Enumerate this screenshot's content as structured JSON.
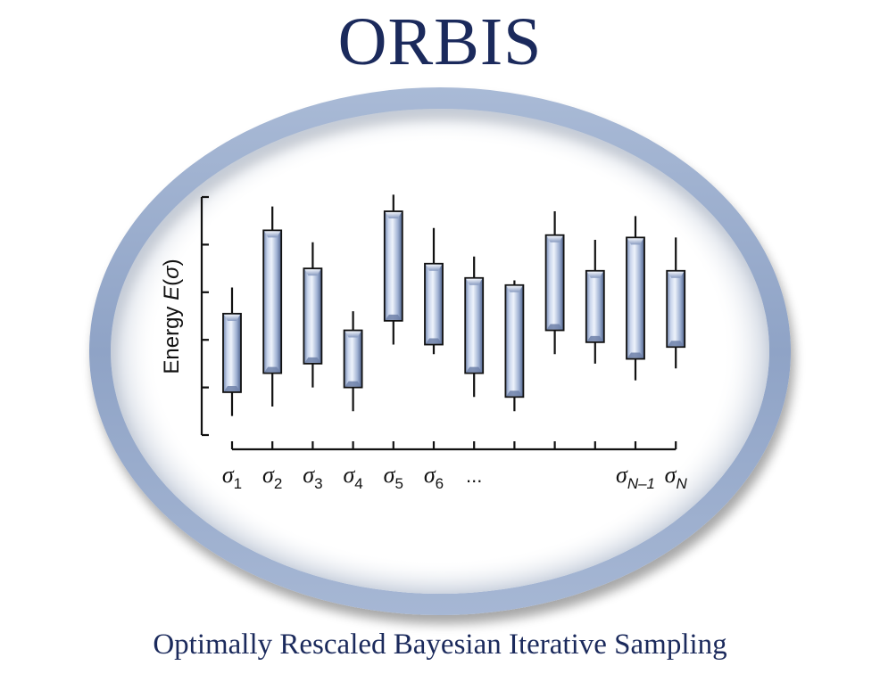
{
  "title": "ORBIS",
  "subtitle": "Optimally Rescaled Bayesian Iterative Sampling",
  "y_axis": {
    "prefix": "Energy ",
    "func": "E",
    "open": "(",
    "var": "σ",
    "close": ")"
  },
  "x_tick_labels": [
    {
      "base": "σ",
      "sub": "1"
    },
    {
      "base": "σ",
      "sub": "2"
    },
    {
      "base": "σ",
      "sub": "3"
    },
    {
      "base": "σ",
      "sub": "4"
    },
    {
      "base": "σ",
      "sub": "5"
    },
    {
      "base": "σ",
      "sub": "6"
    },
    {
      "base": "...",
      "sub": ""
    },
    {
      "base": "",
      "sub": ""
    },
    {
      "base": "",
      "sub": ""
    },
    {
      "base": "",
      "sub": ""
    },
    {
      "base": "σ",
      "sub": "N–1"
    },
    {
      "base": "σ",
      "sub": "N"
    }
  ],
  "chart_data": {
    "type": "candlestick",
    "ylim": [
      0,
      100
    ],
    "series": [
      {
        "low": 8,
        "q1": 18,
        "q3": 51,
        "high": 62
      },
      {
        "low": 12,
        "q1": 26,
        "q3": 86,
        "high": 96
      },
      {
        "low": 20,
        "q1": 30,
        "q3": 70,
        "high": 81
      },
      {
        "low": 10,
        "q1": 20,
        "q3": 44,
        "high": 52
      },
      {
        "low": 38,
        "q1": 48,
        "q3": 94,
        "high": 101
      },
      {
        "low": 34,
        "q1": 38,
        "q3": 72,
        "high": 87
      },
      {
        "low": 16,
        "q1": 26,
        "q3": 66,
        "high": 75
      },
      {
        "low": 10,
        "q1": 16,
        "q3": 63,
        "high": 65
      },
      {
        "low": 34,
        "q1": 44,
        "q3": 84,
        "high": 94
      },
      {
        "low": 30,
        "q1": 39,
        "q3": 69,
        "high": 82
      },
      {
        "low": 23,
        "q1": 32,
        "q3": 83,
        "high": 92
      },
      {
        "low": 28,
        "q1": 37,
        "q3": 69,
        "high": 83
      }
    ]
  },
  "colors": {
    "title": "#1b2a5c",
    "ring": "#92a6c8",
    "box_light": "#e6edf8",
    "box_mid": "#9eb0d2",
    "box_dark": "#4a5e86",
    "axis": "#111111"
  }
}
